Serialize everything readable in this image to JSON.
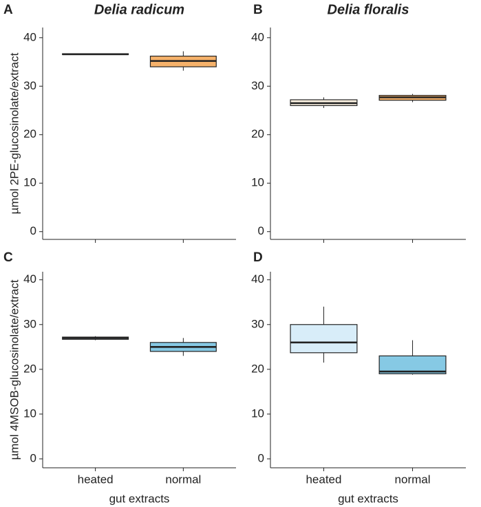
{
  "chart_data": [
    {
      "type": "box",
      "panel": "A",
      "title": "Delia radicum",
      "ylabel": "µmol 2PE-glucosinolate/extract",
      "ylim": [
        -1.6,
        42.1
      ],
      "yticks": [
        0,
        10,
        20,
        30,
        40
      ],
      "boxes": [
        {
          "min": 36.5,
          "q1": 36.5,
          "median": 36.6,
          "q3": 36.7,
          "max": 36.7,
          "color": "#f6c08e"
        },
        {
          "min": 33.2,
          "q1": 34.0,
          "median": 35.2,
          "q3": 36.2,
          "max": 37.2,
          "color": "#f6b26b"
        }
      ]
    },
    {
      "type": "box",
      "panel": "B",
      "title": "Delia floralis",
      "ylim": [
        -1.6,
        42.1
      ],
      "yticks": [
        0,
        10,
        20,
        30,
        40
      ],
      "boxes": [
        {
          "min": 25.5,
          "q1": 26.0,
          "median": 26.5,
          "q3": 27.2,
          "max": 27.7,
          "color": "#fdf3e3"
        },
        {
          "min": 26.7,
          "q1": 27.1,
          "median": 27.7,
          "q3": 28.1,
          "max": 28.4,
          "color": "#f6b26b"
        }
      ]
    },
    {
      "type": "box",
      "panel": "C",
      "ylabel": "µmol 4MSOB-glucosinolate/extract",
      "xlabel": "gut extracts",
      "categories": [
        "heated",
        "normal"
      ],
      "ylim": [
        -2,
        41.8
      ],
      "yticks": [
        0,
        10,
        20,
        30,
        40
      ],
      "boxes": [
        {
          "min": 26.5,
          "q1": 26.7,
          "median": 27.0,
          "q3": 27.2,
          "max": 27.4,
          "color": "#cfe8f5"
        },
        {
          "min": 23.0,
          "q1": 24.0,
          "median": 25.0,
          "q3": 26.0,
          "max": 27.0,
          "color": "#86c9e4"
        }
      ]
    },
    {
      "type": "box",
      "panel": "D",
      "xlabel": "gut extracts",
      "categories": [
        "heated",
        "normal"
      ],
      "ylim": [
        -2,
        41.8
      ],
      "yticks": [
        0,
        10,
        20,
        30,
        40
      ],
      "boxes": [
        {
          "min": 21.5,
          "q1": 23.7,
          "median": 26.0,
          "q3": 30.0,
          "max": 34.0,
          "color": "#d8edf9"
        },
        {
          "min": 18.8,
          "q1": 19.0,
          "median": 19.5,
          "q3": 23.0,
          "max": 26.5,
          "color": "#86c9e4"
        }
      ]
    }
  ]
}
